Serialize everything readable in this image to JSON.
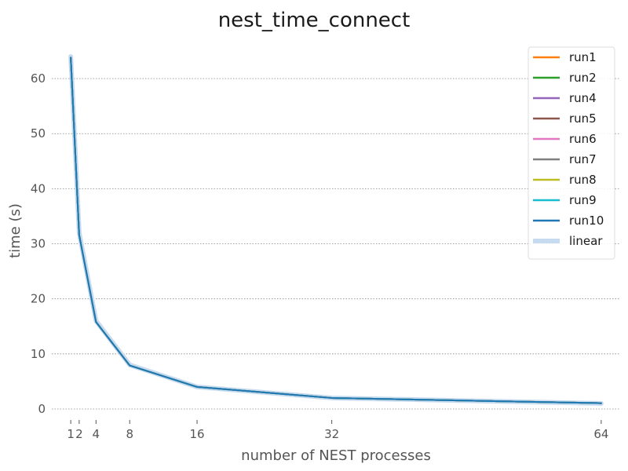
{
  "chart_data": {
    "type": "line",
    "title": "nest_time_connect",
    "xlabel": "number of NEST processes",
    "ylabel": "time (s)",
    "xlim": [
      -1.25,
      66.25
    ],
    "ylim": [
      -2,
      66
    ],
    "xticks": [
      1,
      2,
      4,
      8,
      16,
      32,
      64
    ],
    "xtick_labels": [
      "1",
      "2",
      "4",
      "8",
      "16",
      "32",
      "64"
    ],
    "yticks": [
      0,
      10,
      20,
      30,
      40,
      50,
      60
    ],
    "ytick_labels": [
      "0",
      "10",
      "20",
      "30",
      "40",
      "50",
      "60"
    ],
    "grid": "horizontal dotted",
    "legend_position": "top-right",
    "x": [
      1,
      2,
      4,
      8,
      16,
      32,
      64
    ],
    "series": [
      {
        "name": "run1",
        "color": "#ff7f0e",
        "values": [
          63.8,
          31.6,
          15.8,
          7.9,
          4.0,
          2.0,
          1.05
        ]
      },
      {
        "name": "run2",
        "color": "#2ca02c",
        "values": [
          63.8,
          31.6,
          15.8,
          7.9,
          4.0,
          2.0,
          1.05
        ]
      },
      {
        "name": "run4",
        "color": "#9467bd",
        "values": [
          63.8,
          31.6,
          15.8,
          7.9,
          4.0,
          2.0,
          1.05
        ]
      },
      {
        "name": "run5",
        "color": "#8c564b",
        "values": [
          63.8,
          31.6,
          15.8,
          7.9,
          4.0,
          2.0,
          1.05
        ]
      },
      {
        "name": "run6",
        "color": "#e377c2",
        "values": [
          63.8,
          31.6,
          15.8,
          7.9,
          4.0,
          2.0,
          1.05
        ]
      },
      {
        "name": "run7",
        "color": "#7f7f7f",
        "values": [
          63.8,
          31.6,
          15.8,
          7.9,
          4.0,
          2.0,
          1.05
        ]
      },
      {
        "name": "run8",
        "color": "#bcbd22",
        "values": [
          63.8,
          31.6,
          15.8,
          7.9,
          4.0,
          2.0,
          1.05
        ]
      },
      {
        "name": "run9",
        "color": "#17becf",
        "values": [
          63.8,
          31.6,
          15.8,
          7.9,
          4.0,
          2.0,
          1.05
        ]
      },
      {
        "name": "run10",
        "color": "#1f77b4",
        "values": [
          63.8,
          31.6,
          15.8,
          7.9,
          4.0,
          2.0,
          1.05
        ]
      },
      {
        "name": "linear",
        "color": "#c6dbef",
        "values": [
          64.0,
          32.0,
          16.0,
          8.0,
          4.0,
          2.0,
          1.0
        ]
      }
    ]
  }
}
